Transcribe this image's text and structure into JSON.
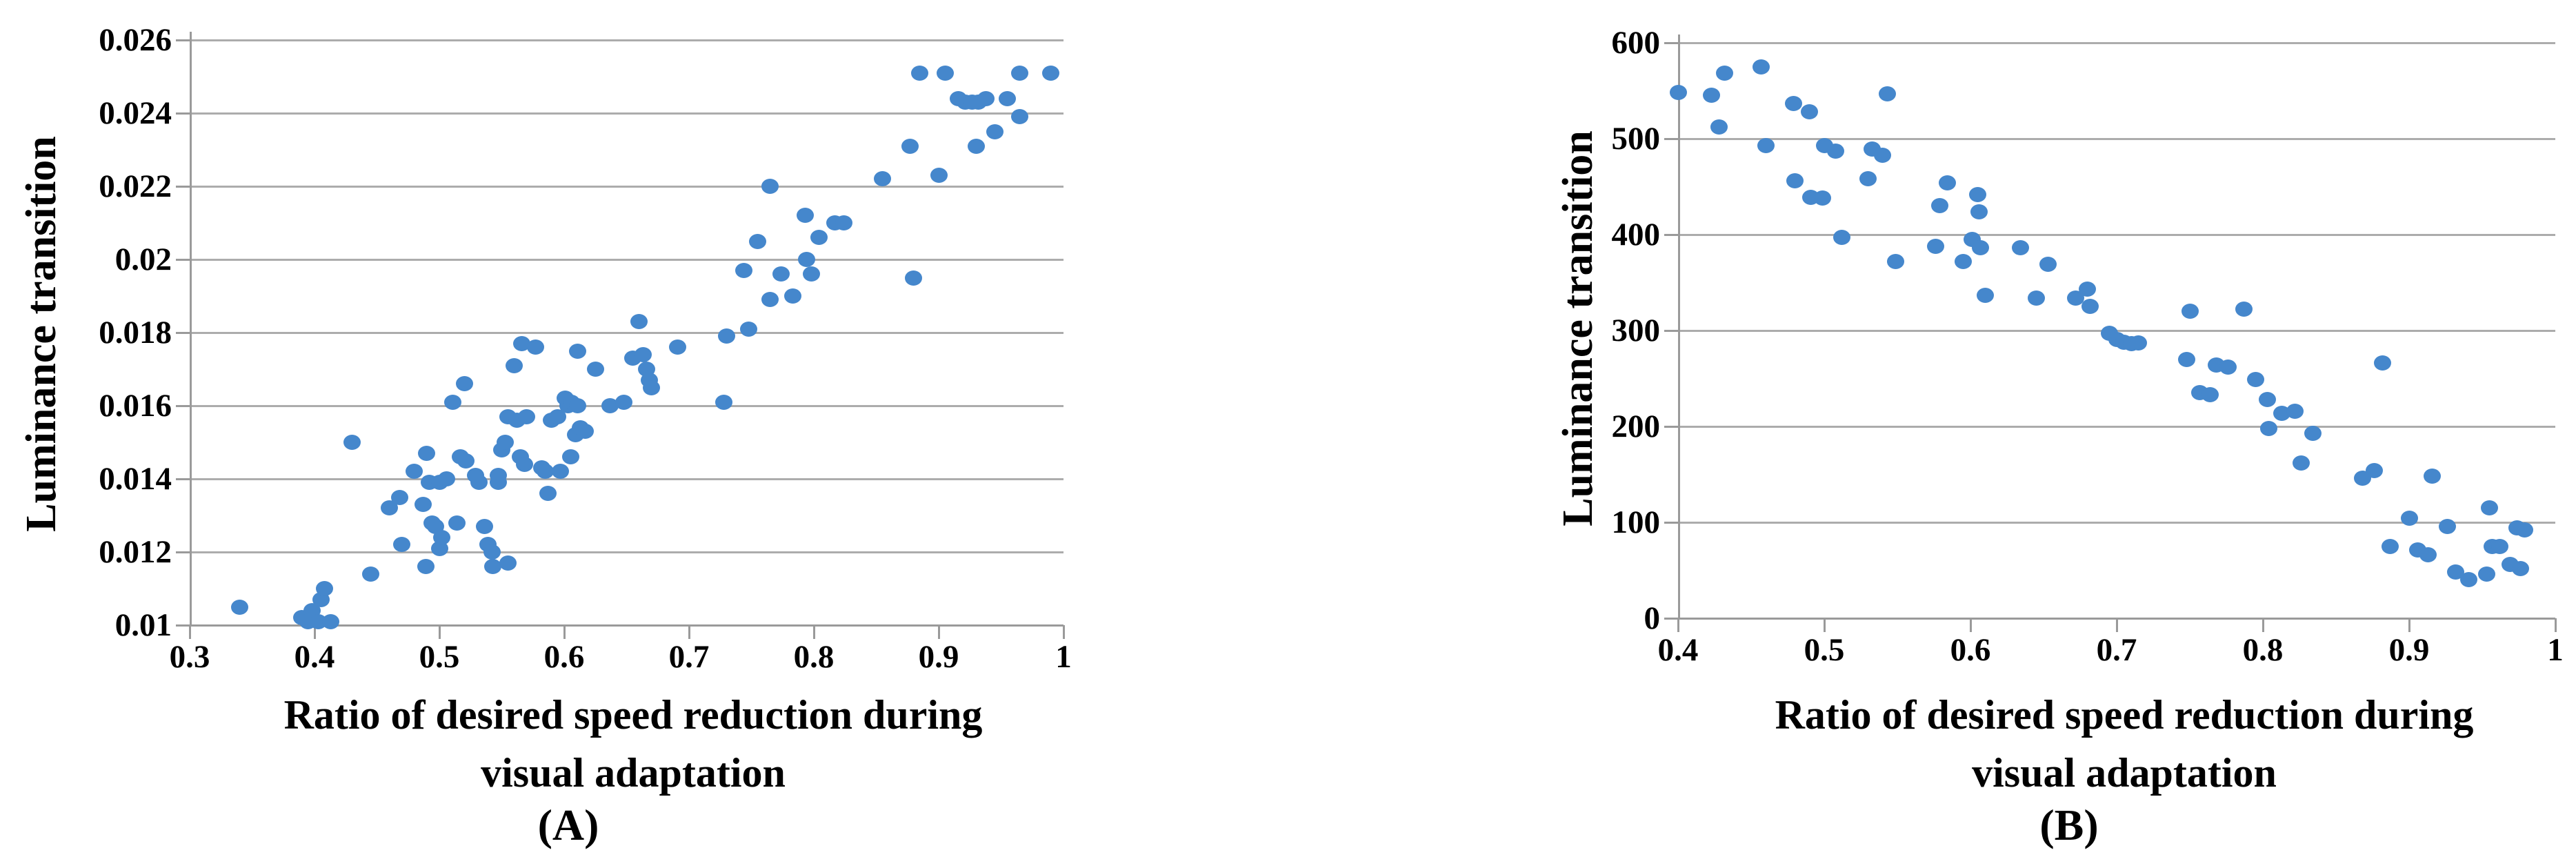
{
  "figure": {
    "description": "Two scatter plots of luminance transition versus ratio of desired speed reduction during visual adaptation",
    "panel_labels": [
      "(A)",
      "(B)"
    ]
  },
  "colors": {
    "marker": "#4587CC",
    "gridline": "#ACACAC",
    "axis": "#9A9A9A",
    "text": "#000000",
    "background": "#FFFFFF"
  },
  "chart_data": [
    {
      "type": "scatter",
      "panel_label": "(A)",
      "title": "",
      "xlabel": "Ratio of desired speed reduction during visual adaptation",
      "xlabel_line1": "Ratio of desired speed reduction during",
      "xlabel_line2": "visual adaptation",
      "ylabel": "Luminance transition",
      "xlim": [
        0.3,
        1
      ],
      "ylim": [
        0.01,
        0.026
      ],
      "x_ticks": [
        "0.3",
        "0.4",
        "0.5",
        "0.6",
        "0.7",
        "0.8",
        "0.9",
        "1"
      ],
      "y_ticks": [
        "0.026",
        "0.024",
        "0.022",
        "0.02",
        "0.018",
        "0.016",
        "0.014",
        "0.012",
        "0.01"
      ],
      "grid": "horizontal-only",
      "legend": "none",
      "points": [
        [
          0.34,
          0.0105
        ],
        [
          0.39,
          0.0102
        ],
        [
          0.395,
          0.0101
        ],
        [
          0.398,
          0.0104
        ],
        [
          0.403,
          0.0101
        ],
        [
          0.405,
          0.0107
        ],
        [
          0.408,
          0.011
        ],
        [
          0.413,
          0.0101
        ],
        [
          0.43,
          0.015
        ],
        [
          0.445,
          0.0114
        ],
        [
          0.46,
          0.0132
        ],
        [
          0.468,
          0.0135
        ],
        [
          0.47,
          0.0122
        ],
        [
          0.48,
          0.0142
        ],
        [
          0.487,
          0.0133
        ],
        [
          0.489,
          0.0116
        ],
        [
          0.49,
          0.0147
        ],
        [
          0.492,
          0.0139
        ],
        [
          0.494,
          0.0128
        ],
        [
          0.497,
          0.0127
        ],
        [
          0.5,
          0.0139
        ],
        [
          0.5,
          0.0121
        ],
        [
          0.502,
          0.0124
        ],
        [
          0.506,
          0.014
        ],
        [
          0.511,
          0.0161
        ],
        [
          0.514,
          0.0128
        ],
        [
          0.517,
          0.0146
        ],
        [
          0.52,
          0.0166
        ],
        [
          0.521,
          0.0145
        ],
        [
          0.529,
          0.0141
        ],
        [
          0.532,
          0.0139
        ],
        [
          0.536,
          0.0127
        ],
        [
          0.539,
          0.0122
        ],
        [
          0.542,
          0.012
        ],
        [
          0.543,
          0.0116
        ],
        [
          0.547,
          0.0141
        ],
        [
          0.547,
          0.0139
        ],
        [
          0.55,
          0.0148
        ],
        [
          0.553,
          0.015
        ],
        [
          0.555,
          0.0157
        ],
        [
          0.555,
          0.0117
        ],
        [
          0.56,
          0.0171
        ],
        [
          0.562,
          0.0156
        ],
        [
          0.565,
          0.0146
        ],
        [
          0.566,
          0.0177
        ],
        [
          0.568,
          0.0144
        ],
        [
          0.57,
          0.0157
        ],
        [
          0.577,
          0.0176
        ],
        [
          0.582,
          0.0143
        ],
        [
          0.585,
          0.0142
        ],
        [
          0.587,
          0.0136
        ],
        [
          0.59,
          0.0156
        ],
        [
          0.595,
          0.0157
        ],
        [
          0.597,
          0.0142
        ],
        [
          0.601,
          0.0162
        ],
        [
          0.603,
          0.016
        ],
        [
          0.605,
          0.0146
        ],
        [
          0.606,
          0.0161
        ],
        [
          0.609,
          0.0152
        ],
        [
          0.611,
          0.0175
        ],
        [
          0.611,
          0.016
        ],
        [
          0.613,
          0.0154
        ],
        [
          0.617,
          0.0153
        ],
        [
          0.625,
          0.017
        ],
        [
          0.637,
          0.016
        ],
        [
          0.648,
          0.0161
        ],
        [
          0.655,
          0.0173
        ],
        [
          0.66,
          0.0183
        ],
        [
          0.663,
          0.0174
        ],
        [
          0.666,
          0.017
        ],
        [
          0.668,
          0.0167
        ],
        [
          0.67,
          0.0165
        ],
        [
          0.691,
          0.0176
        ],
        [
          0.728,
          0.0161
        ],
        [
          0.73,
          0.0179
        ],
        [
          0.744,
          0.0197
        ],
        [
          0.748,
          0.0181
        ],
        [
          0.755,
          0.0205
        ],
        [
          0.765,
          0.022
        ],
        [
          0.765,
          0.0189
        ],
        [
          0.774,
          0.0196
        ],
        [
          0.783,
          0.019
        ],
        [
          0.793,
          0.0212
        ],
        [
          0.794,
          0.02
        ],
        [
          0.798,
          0.0196
        ],
        [
          0.804,
          0.0206
        ],
        [
          0.817,
          0.021
        ],
        [
          0.824,
          0.021
        ],
        [
          0.855,
          0.0222
        ],
        [
          0.877,
          0.0231
        ],
        [
          0.88,
          0.0195
        ],
        [
          0.885,
          0.0251
        ],
        [
          0.9,
          0.0223
        ],
        [
          0.905,
          0.0251
        ],
        [
          0.916,
          0.0244
        ],
        [
          0.921,
          0.0243
        ],
        [
          0.927,
          0.0243
        ],
        [
          0.932,
          0.0243
        ],
        [
          0.938,
          0.0244
        ],
        [
          0.93,
          0.0231
        ],
        [
          0.945,
          0.0235
        ],
        [
          0.955,
          0.0244
        ],
        [
          0.965,
          0.0239
        ],
        [
          0.965,
          0.0251
        ],
        [
          0.99,
          0.0251
        ]
      ]
    },
    {
      "type": "scatter",
      "panel_label": "(B)",
      "title": "",
      "xlabel": "Ratio of desired speed reduction during visual adaptation",
      "xlabel_line1": "Ratio of desired speed reduction during",
      "xlabel_line2": "visual adaptation",
      "ylabel": "Luminance transition",
      "xlim": [
        0.4,
        1
      ],
      "ylim": [
        0,
        600
      ],
      "x_ticks": [
        "0.4",
        "0.5",
        "0.6",
        "0.7",
        "0.8",
        "0.9",
        "1"
      ],
      "y_ticks": [
        "600",
        "500",
        "400",
        "300",
        "200",
        "100",
        "0"
      ],
      "grid": "horizontal-only",
      "legend": "none",
      "points": [
        [
          0.4,
          548
        ],
        [
          0.423,
          545
        ],
        [
          0.428,
          512
        ],
        [
          0.432,
          568
        ],
        [
          0.457,
          575
        ],
        [
          0.46,
          493
        ],
        [
          0.479,
          537
        ],
        [
          0.48,
          456
        ],
        [
          0.49,
          528
        ],
        [
          0.491,
          439
        ],
        [
          0.499,
          438
        ],
        [
          0.5,
          493
        ],
        [
          0.508,
          487
        ],
        [
          0.512,
          397
        ],
        [
          0.53,
          458
        ],
        [
          0.533,
          489
        ],
        [
          0.54,
          483
        ],
        [
          0.543,
          547
        ],
        [
          0.549,
          372
        ],
        [
          0.576,
          388
        ],
        [
          0.579,
          430
        ],
        [
          0.584,
          454
        ],
        [
          0.595,
          372
        ],
        [
          0.601,
          395
        ],
        [
          0.605,
          442
        ],
        [
          0.606,
          424
        ],
        [
          0.607,
          386
        ],
        [
          0.61,
          337
        ],
        [
          0.634,
          386
        ],
        [
          0.645,
          334
        ],
        [
          0.653,
          369
        ],
        [
          0.672,
          334
        ],
        [
          0.68,
          343
        ],
        [
          0.682,
          325
        ],
        [
          0.695,
          297
        ],
        [
          0.7,
          291
        ],
        [
          0.705,
          288
        ],
        [
          0.71,
          286
        ],
        [
          0.715,
          287
        ],
        [
          0.748,
          270
        ],
        [
          0.75,
          320
        ],
        [
          0.757,
          235
        ],
        [
          0.764,
          233
        ],
        [
          0.768,
          264
        ],
        [
          0.776,
          262
        ],
        [
          0.787,
          322
        ],
        [
          0.795,
          249
        ],
        [
          0.803,
          228
        ],
        [
          0.804,
          198
        ],
        [
          0.813,
          214
        ],
        [
          0.822,
          216
        ],
        [
          0.826,
          162
        ],
        [
          0.834,
          193
        ],
        [
          0.868,
          146
        ],
        [
          0.876,
          154
        ],
        [
          0.882,
          266
        ],
        [
          0.887,
          75
        ],
        [
          0.9,
          104
        ],
        [
          0.906,
          71
        ],
        [
          0.913,
          66
        ],
        [
          0.916,
          148
        ],
        [
          0.926,
          96
        ],
        [
          0.932,
          48
        ],
        [
          0.941,
          40
        ],
        [
          0.953,
          46
        ],
        [
          0.955,
          115
        ],
        [
          0.957,
          75
        ],
        [
          0.962,
          75
        ],
        [
          0.969,
          56
        ],
        [
          0.974,
          94
        ],
        [
          0.976,
          52
        ],
        [
          0.979,
          92
        ]
      ]
    }
  ]
}
